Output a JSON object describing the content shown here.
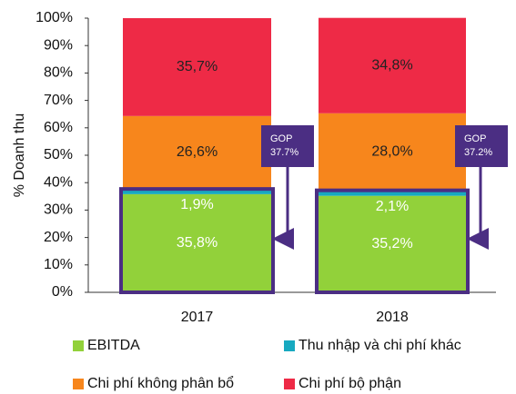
{
  "chart_data": {
    "type": "stacked_bar",
    "y_label": "% Doanh thu",
    "categories": [
      "2017",
      "2018"
    ],
    "series": [
      {
        "name": "EBITDA",
        "color": "#92d13a",
        "label_color": "#ffffff",
        "values": [
          35.8,
          35.2
        ],
        "value_labels": [
          "35,8%",
          "35,2%"
        ]
      },
      {
        "name": "Thu nhập và chi phí khác",
        "color": "#17a9c0",
        "label_color": "#ffffff",
        "values": [
          1.9,
          2.1
        ],
        "value_labels": [
          "1,9%",
          "2,1%"
        ]
      },
      {
        "name": "Chi phí không phân bổ",
        "color": "#f7861c",
        "label_color": "#222222",
        "values": [
          26.6,
          28.0
        ],
        "value_labels": [
          "26,6%",
          "28,0%"
        ]
      },
      {
        "name": "Chi phí bộ phận",
        "color": "#ee2a46",
        "label_color": "#222222",
        "values": [
          35.7,
          34.8
        ],
        "value_labels": [
          "35,7%",
          "34,8%"
        ]
      }
    ],
    "annotations": [
      {
        "label": "GOP",
        "value": 37.7,
        "value_label": "37.7%"
      },
      {
        "label": "GOP",
        "value": 37.2,
        "value_label": "37.2%"
      }
    ],
    "annotation_color": "#4b2e83",
    "ylim": [
      0,
      100
    ],
    "yticks": [
      {
        "value": 0,
        "label": "0%"
      },
      {
        "value": 10,
        "label": "10%"
      },
      {
        "value": 20,
        "label": "20%"
      },
      {
        "value": 30,
        "label": "30%"
      },
      {
        "value": 40,
        "label": "40%"
      },
      {
        "value": 50,
        "label": "50%"
      },
      {
        "value": 60,
        "label": "60%"
      },
      {
        "value": 70,
        "label": "70%"
      },
      {
        "value": 80,
        "label": "80%"
      },
      {
        "value": 90,
        "label": "90%"
      },
      {
        "value": 100,
        "label": "100%"
      }
    ]
  }
}
